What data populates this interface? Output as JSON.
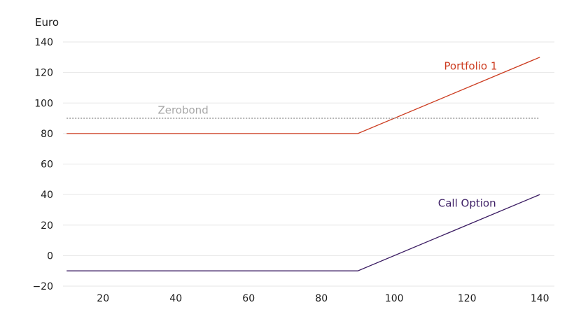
{
  "chart_data": {
    "type": "line",
    "ylabel": "Euro",
    "xlabel": "",
    "xlim": [
      9,
      144
    ],
    "ylim": [
      -20,
      140
    ],
    "xticks": [
      20,
      40,
      60,
      80,
      100,
      120,
      140
    ],
    "yticks": [
      -20,
      0,
      20,
      40,
      60,
      80,
      100,
      120,
      140
    ],
    "ytick_labels": [
      "−20",
      "0",
      "20",
      "40",
      "60",
      "80",
      "100",
      "120",
      "140"
    ],
    "grid": "horizontal",
    "series": [
      {
        "name": "Portfolio 1",
        "color": "#cc3b1f",
        "style": "solid",
        "x": [
          10,
          90,
          140
        ],
        "y": [
          80,
          80,
          130
        ],
        "label_at": [
          121,
          122
        ]
      },
      {
        "name": "Zerobond",
        "color": "#a6a6a6",
        "style": "dotted",
        "x": [
          10,
          140
        ],
        "y": [
          90,
          90
        ],
        "label_at": [
          42,
          93
        ]
      },
      {
        "name": "Call Option",
        "color": "#3b1c63",
        "style": "solid",
        "x": [
          10,
          90,
          140
        ],
        "y": [
          -10,
          -10,
          40
        ],
        "label_at": [
          120,
          32
        ]
      }
    ]
  }
}
